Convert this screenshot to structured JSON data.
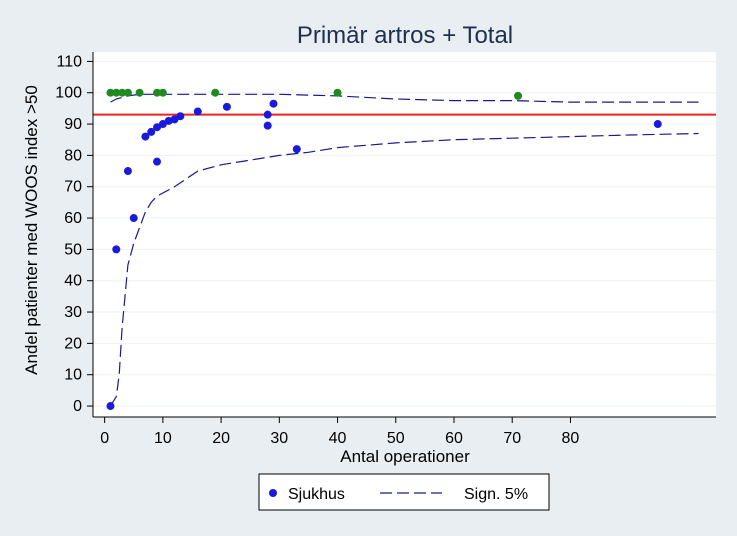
{
  "chart_data": {
    "type": "scatter",
    "title": "Primär artros + Total",
    "xlabel": "Antal operationer",
    "ylabel": "Andel patienter med WOOS index >50",
    "xlim": [
      -2,
      105
    ],
    "ylim": [
      -3.5,
      113
    ],
    "x_ticks": [
      0,
      10,
      20,
      30,
      40,
      50,
      60,
      70,
      80
    ],
    "y_ticks": [
      0,
      10,
      20,
      30,
      40,
      50,
      60,
      70,
      80,
      90,
      100,
      110
    ],
    "grid": true,
    "reference_line": {
      "y": 93,
      "color": "#e8261c"
    },
    "colors": {
      "blue": "#1a1adc",
      "green": "#1f8a1f",
      "band": "#1a1a8c",
      "background": "#e8eef2",
      "plot_bg": "#ffffff",
      "grid": "#eef3f6",
      "title": "#1f2f4f"
    },
    "series": [
      {
        "name": "Sjukhus",
        "color": "#1a1adc",
        "points": [
          [
            1,
            0
          ],
          [
            2,
            50
          ],
          [
            4,
            75
          ],
          [
            5,
            60
          ],
          [
            7,
            86
          ],
          [
            8,
            87.5
          ],
          [
            9,
            89
          ],
          [
            9,
            78
          ],
          [
            10,
            90
          ],
          [
            11,
            91
          ],
          [
            12,
            91.5
          ],
          [
            13,
            92.5
          ],
          [
            16,
            94
          ],
          [
            21,
            95.5
          ],
          [
            28,
            93
          ],
          [
            28,
            89.5
          ],
          [
            29,
            96.5
          ],
          [
            33,
            82
          ],
          [
            95,
            90
          ]
        ]
      },
      {
        "color": "#1f8a1f",
        "points": [
          [
            1,
            100
          ],
          [
            2,
            100
          ],
          [
            3,
            100
          ],
          [
            4,
            100
          ],
          [
            6,
            100
          ],
          [
            9,
            100
          ],
          [
            10,
            100
          ],
          [
            19,
            100
          ],
          [
            40,
            100
          ],
          [
            71,
            99
          ]
        ]
      },
      {
        "name": "Sign. 5%",
        "type": "line",
        "dash": true,
        "lower": [
          [
            1,
            0
          ],
          [
            2,
            3
          ],
          [
            2.5,
            10
          ],
          [
            3,
            25
          ],
          [
            4,
            45
          ],
          [
            5,
            52
          ],
          [
            6,
            57
          ],
          [
            7,
            62
          ],
          [
            8,
            65
          ],
          [
            9,
            67
          ],
          [
            10,
            68
          ],
          [
            12,
            70
          ],
          [
            14,
            72.5
          ],
          [
            16,
            75
          ],
          [
            20,
            77
          ],
          [
            25,
            78.5
          ],
          [
            30,
            80
          ],
          [
            35,
            81
          ],
          [
            40,
            82.5
          ],
          [
            50,
            84
          ],
          [
            60,
            85
          ],
          [
            70,
            85.5
          ],
          [
            80,
            86
          ],
          [
            90,
            86.5
          ],
          [
            102,
            87
          ]
        ],
        "upper": [
          [
            1,
            97
          ],
          [
            2,
            98
          ],
          [
            4,
            99
          ],
          [
            6,
            99.5
          ],
          [
            10,
            99.5
          ],
          [
            20,
            99.5
          ],
          [
            30,
            99.5
          ],
          [
            40,
            99
          ],
          [
            50,
            98
          ],
          [
            60,
            97.5
          ],
          [
            70,
            97.5
          ],
          [
            80,
            97
          ],
          [
            102,
            97
          ]
        ]
      }
    ],
    "legend": {
      "position": "bottom",
      "items": [
        {
          "label": "Sjukhus",
          "marker": "dot"
        },
        {
          "label": "Sign. 5%",
          "marker": "dash"
        }
      ]
    }
  }
}
